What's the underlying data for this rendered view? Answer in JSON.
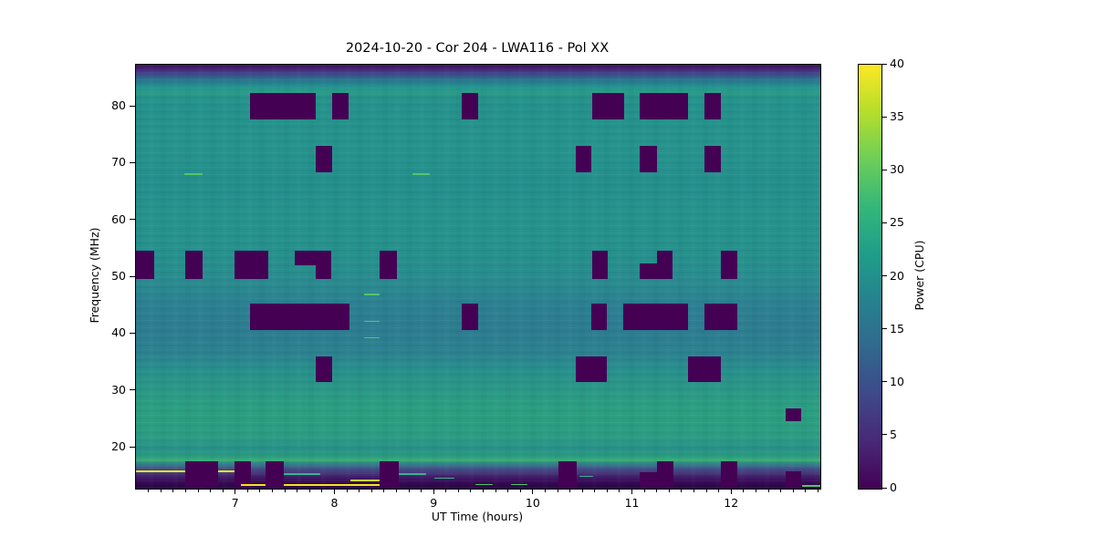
{
  "figure": {
    "title": "2024-10-20 - Cor 204 - LWA116 - Pol XX",
    "xlabel": "UT Time (hours)",
    "ylabel": "Frequency (MHz)",
    "colorbar_label": "Power (CPU)",
    "background_color": "#ffffff"
  },
  "chart_data": {
    "type": "heatmap",
    "title": "2024-10-20 - Cor 204 - LWA116 - Pol XX",
    "xlabel": "UT Time (hours)",
    "ylabel": "Frequency (MHz)",
    "x_range_hours": [
      5.99,
      12.89
    ],
    "y_range_mhz": [
      12.8,
      87.4
    ],
    "x_major_ticks": [
      7,
      8,
      9,
      10,
      11,
      12
    ],
    "x_minor_tick_step": 0.125,
    "y_major_ticks": [
      20,
      30,
      40,
      50,
      60,
      70,
      80
    ],
    "grid": false,
    "colorbar": {
      "label": "Power (CPU)",
      "range": [
        0,
        40
      ],
      "ticks": [
        0,
        5,
        10,
        15,
        20,
        25,
        30,
        35,
        40
      ],
      "colormap": "viridis",
      "stops": [
        "#440154",
        "#482878",
        "#3e4989",
        "#31688e",
        "#26828e",
        "#1f9e89",
        "#35b779",
        "#6ece58",
        "#b5de2b",
        "#fde725"
      ]
    },
    "background_power_typical_cpu": 20,
    "flagged_value_cpu": 0,
    "flagged_color": "#440154",
    "flagged_regions": [
      {
        "t0": 7.14,
        "t1": 7.8,
        "f0": 77.8,
        "f1": 82.4
      },
      {
        "t0": 7.97,
        "t1": 8.13,
        "f0": 77.8,
        "f1": 82.4
      },
      {
        "t0": 9.27,
        "t1": 9.44,
        "f0": 77.8,
        "f1": 82.4
      },
      {
        "t0": 10.59,
        "t1": 10.91,
        "f0": 77.8,
        "f1": 82.4
      },
      {
        "t0": 11.07,
        "t1": 11.56,
        "f0": 77.8,
        "f1": 82.4
      },
      {
        "t0": 11.72,
        "t1": 11.89,
        "f0": 77.8,
        "f1": 82.4
      },
      {
        "t0": 7.8,
        "t1": 7.97,
        "f0": 68.5,
        "f1": 73.1
      },
      {
        "t0": 10.42,
        "t1": 10.58,
        "f0": 68.5,
        "f1": 73.1
      },
      {
        "t0": 11.07,
        "t1": 11.24,
        "f0": 68.5,
        "f1": 73.1
      },
      {
        "t0": 11.72,
        "t1": 11.89,
        "f0": 68.5,
        "f1": 73.1
      },
      {
        "t0": 5.99,
        "t1": 6.17,
        "f0": 49.7,
        "f1": 54.7
      },
      {
        "t0": 6.49,
        "t1": 6.66,
        "f0": 49.7,
        "f1": 54.7
      },
      {
        "t0": 6.98,
        "t1": 7.32,
        "f0": 49.7,
        "f1": 54.7
      },
      {
        "t0": 7.59,
        "t1": 7.8,
        "f0": 52.1,
        "f1": 54.7
      },
      {
        "t0": 7.8,
        "t1": 7.96,
        "f0": 49.7,
        "f1": 54.7
      },
      {
        "t0": 8.45,
        "t1": 8.62,
        "f0": 49.7,
        "f1": 54.7
      },
      {
        "t0": 10.59,
        "t1": 10.75,
        "f0": 49.7,
        "f1": 54.7
      },
      {
        "t0": 11.07,
        "t1": 11.24,
        "f0": 49.7,
        "f1": 52.4
      },
      {
        "t0": 11.24,
        "t1": 11.4,
        "f0": 49.7,
        "f1": 54.7
      },
      {
        "t0": 11.89,
        "t1": 12.05,
        "f0": 49.7,
        "f1": 54.7
      },
      {
        "t0": 7.14,
        "t1": 8.14,
        "f0": 40.7,
        "f1": 45.3
      },
      {
        "t0": 9.27,
        "t1": 9.44,
        "f0": 40.7,
        "f1": 45.3
      },
      {
        "t0": 10.58,
        "t1": 10.74,
        "f0": 40.7,
        "f1": 45.3
      },
      {
        "t0": 10.9,
        "t1": 11.56,
        "f0": 40.7,
        "f1": 45.3
      },
      {
        "t0": 11.72,
        "t1": 12.05,
        "f0": 40.7,
        "f1": 45.3
      },
      {
        "t0": 7.8,
        "t1": 7.97,
        "f0": 31.6,
        "f1": 36.0
      },
      {
        "t0": 10.42,
        "t1": 10.74,
        "f0": 31.6,
        "f1": 36.0
      },
      {
        "t0": 11.56,
        "t1": 11.89,
        "f0": 31.6,
        "f1": 36.0
      },
      {
        "t0": 12.54,
        "t1": 12.7,
        "f0": 24.6,
        "f1": 26.9
      },
      {
        "t0": 6.49,
        "t1": 6.82,
        "f0": 13.1,
        "f1": 17.6
      },
      {
        "t0": 6.98,
        "t1": 7.15,
        "f0": 13.1,
        "f1": 17.6
      },
      {
        "t0": 7.3,
        "t1": 7.48,
        "f0": 13.1,
        "f1": 17.6
      },
      {
        "t0": 8.45,
        "t1": 8.64,
        "f0": 13.1,
        "f1": 17.6
      },
      {
        "t0": 10.25,
        "t1": 10.43,
        "f0": 13.1,
        "f1": 17.6
      },
      {
        "t0": 11.07,
        "t1": 11.24,
        "f0": 13.1,
        "f1": 15.7
      },
      {
        "t0": 11.24,
        "t1": 11.41,
        "f0": 13.1,
        "f1": 17.6
      },
      {
        "t0": 11.89,
        "t1": 12.05,
        "f0": 13.1,
        "f1": 17.6
      },
      {
        "t0": 12.54,
        "t1": 12.7,
        "f0": 13.1,
        "f1": 15.9
      }
    ],
    "rfi_colors": {
      "yellow": "#f2e41e",
      "yellow-green": "#c8e02c",
      "green": "#53c568",
      "teal": "#38b28a"
    },
    "rfi_lines": [
      {
        "f": 68.2,
        "t0": 6.48,
        "t1": 6.66,
        "color": "green",
        "w": 2
      },
      {
        "f": 68.2,
        "t0": 8.78,
        "t1": 8.95,
        "color": "green",
        "w": 2
      },
      {
        "f": 47.0,
        "t0": 8.29,
        "t1": 8.45,
        "color": "green",
        "w": 2
      },
      {
        "f": 42.2,
        "t0": 8.29,
        "t1": 8.45,
        "color": "green",
        "w": 1
      },
      {
        "f": 39.3,
        "t0": 8.29,
        "t1": 8.45,
        "color": "green",
        "w": 1
      },
      {
        "f": 15.9,
        "t0": 5.99,
        "t1": 6.49,
        "color": "yellow",
        "w": 2
      },
      {
        "f": 15.9,
        "t0": 6.82,
        "t1": 6.98,
        "color": "yellow",
        "w": 2
      },
      {
        "f": 13.4,
        "t0": 7.05,
        "t1": 7.3,
        "color": "yellow",
        "w": 2
      },
      {
        "f": 13.4,
        "t0": 7.48,
        "t1": 8.45,
        "color": "yellow",
        "w": 2
      },
      {
        "f": 14.3,
        "t0": 8.15,
        "t1": 8.45,
        "color": "yellow-green",
        "w": 2
      },
      {
        "f": 15.3,
        "t0": 7.48,
        "t1": 7.85,
        "color": "teal",
        "w": 2
      },
      {
        "f": 15.3,
        "t0": 8.64,
        "t1": 8.92,
        "color": "teal",
        "w": 2
      },
      {
        "f": 14.6,
        "t0": 9.0,
        "t1": 9.2,
        "color": "teal",
        "w": 1
      },
      {
        "f": 13.6,
        "t0": 9.41,
        "t1": 9.59,
        "color": "green",
        "w": 1
      },
      {
        "f": 13.6,
        "t0": 9.77,
        "t1": 9.94,
        "color": "green",
        "w": 1
      },
      {
        "f": 15.0,
        "t0": 10.46,
        "t1": 10.6,
        "color": "teal",
        "w": 1
      },
      {
        "f": 13.3,
        "t0": 12.71,
        "t1": 12.89,
        "color": "green",
        "w": 2
      }
    ]
  }
}
